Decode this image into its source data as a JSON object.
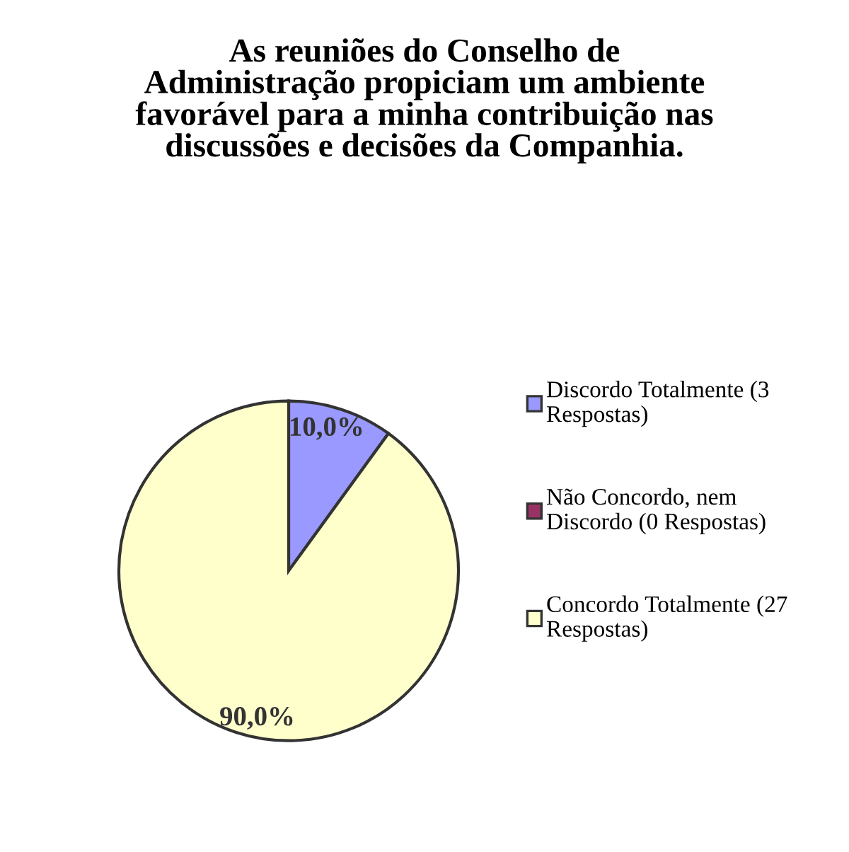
{
  "chart_data": {
    "type": "pie",
    "title": "As reuniões do Conselho de\nAdministração propiciam um ambiente\nfavorável para a minha contribuição nas\ndiscussões e decisões da Companhia.",
    "categories": [
      "Discordo Totalmente (3\nRespostas)",
      "Não Concordo, nem\nDiscordo (0 Respostas)",
      "Concordo Totalmente (27\nRespostas)"
    ],
    "values": [
      10,
      0,
      90
    ],
    "colors": [
      "#9999ff",
      "#993366",
      "#ffffcc"
    ],
    "value_labels": [
      "10,0%",
      null,
      "90,0%"
    ],
    "legend": "right"
  }
}
